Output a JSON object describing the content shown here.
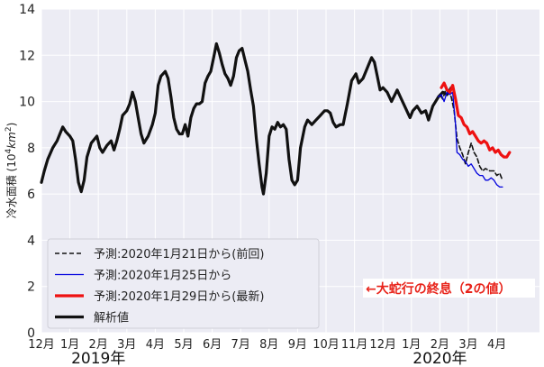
{
  "chart_data": {
    "type": "line",
    "ylabel": "冷水面積 (10⁴km²)",
    "ylim": [
      0,
      14
    ],
    "y_ticks": [
      "0",
      "2",
      "4",
      "6",
      "8",
      "10",
      "12",
      "14"
    ],
    "x_ticks": [
      "12月",
      "1月",
      "2月",
      "3月",
      "4月",
      "5月",
      "6月",
      "7月",
      "8月",
      "9月",
      "10月",
      "11月",
      "12月",
      "1月",
      "2月",
      "3月",
      "4月"
    ],
    "year_labels": [
      {
        "label": "2019年",
        "at_tick": 2
      },
      {
        "label": "2020年",
        "at_tick": 14
      }
    ],
    "grid": true,
    "legend_position": "lower-left",
    "annotation": "←大蛇行の終息（2の値）",
    "series": [
      {
        "name": "解析値",
        "color": "#111111",
        "style": "solid-thick",
        "points": [
          [
            0.0,
            6.5
          ],
          [
            0.1,
            7.0
          ],
          [
            0.22,
            7.5
          ],
          [
            0.4,
            8.0
          ],
          [
            0.55,
            8.3
          ],
          [
            0.65,
            8.6
          ],
          [
            0.75,
            8.9
          ],
          [
            0.85,
            8.7
          ],
          [
            1.0,
            8.5
          ],
          [
            1.1,
            8.3
          ],
          [
            1.2,
            7.5
          ],
          [
            1.3,
            6.5
          ],
          [
            1.4,
            6.1
          ],
          [
            1.5,
            6.6
          ],
          [
            1.6,
            7.6
          ],
          [
            1.75,
            8.2
          ],
          [
            1.95,
            8.5
          ],
          [
            2.05,
            8.0
          ],
          [
            2.15,
            7.8
          ],
          [
            2.3,
            8.1
          ],
          [
            2.45,
            8.3
          ],
          [
            2.55,
            7.9
          ],
          [
            2.65,
            8.3
          ],
          [
            2.75,
            8.8
          ],
          [
            2.85,
            9.4
          ],
          [
            3.0,
            9.6
          ],
          [
            3.1,
            9.9
          ],
          [
            3.2,
            10.4
          ],
          [
            3.3,
            10.0
          ],
          [
            3.4,
            9.3
          ],
          [
            3.5,
            8.6
          ],
          [
            3.6,
            8.2
          ],
          [
            3.75,
            8.5
          ],
          [
            3.9,
            9.0
          ],
          [
            4.0,
            9.5
          ],
          [
            4.1,
            10.7
          ],
          [
            4.2,
            11.1
          ],
          [
            4.35,
            11.3
          ],
          [
            4.45,
            11.0
          ],
          [
            4.55,
            10.2
          ],
          [
            4.65,
            9.3
          ],
          [
            4.75,
            8.8
          ],
          [
            4.85,
            8.6
          ],
          [
            4.95,
            8.6
          ],
          [
            5.05,
            9.0
          ],
          [
            5.15,
            8.5
          ],
          [
            5.25,
            9.3
          ],
          [
            5.35,
            9.7
          ],
          [
            5.45,
            9.9
          ],
          [
            5.55,
            9.9
          ],
          [
            5.65,
            10.0
          ],
          [
            5.75,
            10.8
          ],
          [
            5.85,
            11.1
          ],
          [
            5.95,
            11.3
          ],
          [
            6.05,
            11.9
          ],
          [
            6.15,
            12.5
          ],
          [
            6.25,
            12.1
          ],
          [
            6.35,
            11.6
          ],
          [
            6.45,
            11.2
          ],
          [
            6.55,
            11.0
          ],
          [
            6.65,
            10.7
          ],
          [
            6.75,
            11.1
          ],
          [
            6.85,
            11.9
          ],
          [
            6.95,
            12.2
          ],
          [
            7.05,
            12.3
          ],
          [
            7.15,
            11.8
          ],
          [
            7.25,
            11.3
          ],
          [
            7.35,
            10.5
          ],
          [
            7.45,
            9.8
          ],
          [
            7.55,
            8.4
          ],
          [
            7.65,
            7.3
          ],
          [
            7.75,
            6.3
          ],
          [
            7.8,
            6.0
          ],
          [
            7.9,
            6.9
          ],
          [
            8.0,
            8.5
          ],
          [
            8.1,
            8.9
          ],
          [
            8.2,
            8.8
          ],
          [
            8.3,
            9.1
          ],
          [
            8.4,
            8.9
          ],
          [
            8.5,
            9.0
          ],
          [
            8.6,
            8.8
          ],
          [
            8.7,
            7.5
          ],
          [
            8.8,
            6.6
          ],
          [
            8.9,
            6.4
          ],
          [
            9.0,
            6.6
          ],
          [
            9.1,
            8.0
          ],
          [
            9.25,
            8.9
          ],
          [
            9.35,
            9.2
          ],
          [
            9.5,
            9.0
          ],
          [
            9.65,
            9.2
          ],
          [
            9.8,
            9.4
          ],
          [
            9.95,
            9.6
          ],
          [
            10.05,
            9.6
          ],
          [
            10.15,
            9.5
          ],
          [
            10.25,
            9.1
          ],
          [
            10.35,
            8.9
          ],
          [
            10.5,
            9.0
          ],
          [
            10.6,
            9.0
          ],
          [
            10.75,
            9.9
          ],
          [
            10.9,
            10.9
          ],
          [
            11.05,
            11.2
          ],
          [
            11.15,
            10.8
          ],
          [
            11.3,
            11.0
          ],
          [
            11.5,
            11.6
          ],
          [
            11.6,
            11.9
          ],
          [
            11.7,
            11.7
          ],
          [
            11.8,
            11.1
          ],
          [
            11.9,
            10.5
          ],
          [
            12.0,
            10.6
          ],
          [
            12.15,
            10.4
          ],
          [
            12.3,
            10.0
          ],
          [
            12.5,
            10.5
          ],
          [
            12.65,
            10.1
          ],
          [
            12.8,
            9.7
          ],
          [
            12.95,
            9.3
          ],
          [
            13.05,
            9.6
          ],
          [
            13.2,
            9.8
          ],
          [
            13.35,
            9.5
          ],
          [
            13.5,
            9.6
          ],
          [
            13.6,
            9.2
          ],
          [
            13.75,
            9.8
          ],
          [
            13.95,
            10.2
          ],
          [
            14.1,
            10.4
          ],
          [
            14.25,
            10.3
          ],
          [
            14.4,
            10.6
          ]
        ]
      },
      {
        "name": "予測:2020年1月21日から(前回)",
        "color": "#111111",
        "style": "dashed",
        "points": [
          [
            13.9,
            10.1
          ],
          [
            14.0,
            10.3
          ],
          [
            14.1,
            10.1
          ],
          [
            14.2,
            10.5
          ],
          [
            14.3,
            10.4
          ],
          [
            14.4,
            10.2
          ],
          [
            14.5,
            9.6
          ],
          [
            14.6,
            8.4
          ],
          [
            14.7,
            8.0
          ],
          [
            14.8,
            7.7
          ],
          [
            14.9,
            7.3
          ],
          [
            15.0,
            7.8
          ],
          [
            15.1,
            8.2
          ],
          [
            15.2,
            7.8
          ],
          [
            15.3,
            7.6
          ],
          [
            15.4,
            7.2
          ],
          [
            15.5,
            7.0
          ],
          [
            15.6,
            7.1
          ],
          [
            15.75,
            7.0
          ],
          [
            15.9,
            7.0
          ],
          [
            16.0,
            6.8
          ],
          [
            16.1,
            6.9
          ],
          [
            16.2,
            6.6
          ]
        ]
      },
      {
        "name": "予測:2020年1月25日から",
        "color": "#0000dd",
        "style": "solid-thin",
        "points": [
          [
            13.95,
            10.2
          ],
          [
            14.05,
            10.3
          ],
          [
            14.15,
            10.0
          ],
          [
            14.25,
            10.4
          ],
          [
            14.35,
            10.3
          ],
          [
            14.45,
            10.4
          ],
          [
            14.55,
            9.0
          ],
          [
            14.6,
            7.8
          ],
          [
            14.7,
            7.7
          ],
          [
            14.8,
            7.5
          ],
          [
            14.9,
            7.4
          ],
          [
            15.0,
            7.2
          ],
          [
            15.1,
            7.3
          ],
          [
            15.2,
            7.1
          ],
          [
            15.3,
            6.9
          ],
          [
            15.4,
            6.8
          ],
          [
            15.5,
            6.8
          ],
          [
            15.6,
            6.6
          ],
          [
            15.7,
            6.6
          ],
          [
            15.8,
            6.7
          ],
          [
            15.9,
            6.6
          ],
          [
            16.0,
            6.4
          ],
          [
            16.1,
            6.3
          ],
          [
            16.2,
            6.3
          ]
        ]
      },
      {
        "name": "予測:2020年1月29日から(最新)",
        "color": "#ee1111",
        "style": "solid-thick",
        "points": [
          [
            14.05,
            10.6
          ],
          [
            14.15,
            10.8
          ],
          [
            14.25,
            10.5
          ],
          [
            14.35,
            10.4
          ],
          [
            14.45,
            10.7
          ],
          [
            14.55,
            10.1
          ],
          [
            14.65,
            9.4
          ],
          [
            14.75,
            9.3
          ],
          [
            14.85,
            9.0
          ],
          [
            14.95,
            8.9
          ],
          [
            15.05,
            8.6
          ],
          [
            15.15,
            8.7
          ],
          [
            15.25,
            8.5
          ],
          [
            15.35,
            8.3
          ],
          [
            15.45,
            8.2
          ],
          [
            15.55,
            8.3
          ],
          [
            15.65,
            8.2
          ],
          [
            15.75,
            7.9
          ],
          [
            15.85,
            8.0
          ],
          [
            15.95,
            7.8
          ],
          [
            16.05,
            7.9
          ],
          [
            16.15,
            7.7
          ],
          [
            16.25,
            7.6
          ],
          [
            16.35,
            7.6
          ],
          [
            16.45,
            7.8
          ]
        ]
      }
    ]
  }
}
